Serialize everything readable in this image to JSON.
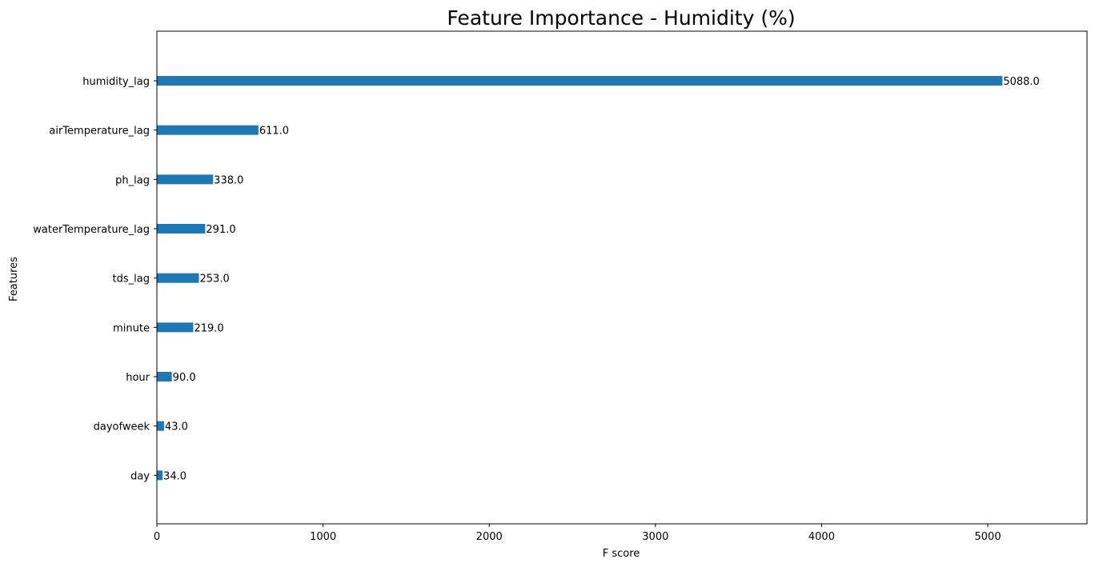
{
  "chart_data": {
    "type": "bar",
    "orientation": "horizontal",
    "title": "Feature Importance - Humidity (%)",
    "xlabel": "F score",
    "ylabel": "Features",
    "categories": [
      "humidity_lag",
      "airTemperature_lag",
      "ph_lag",
      "waterTemperature_lag",
      "tds_lag",
      "minute",
      "hour",
      "dayofweek",
      "day"
    ],
    "values": [
      5088.0,
      611.0,
      338.0,
      291.0,
      253.0,
      219.0,
      90.0,
      43.0,
      34.0
    ],
    "data_labels": [
      "5088.0",
      "611.0",
      "338.0",
      "291.0",
      "253.0",
      "219.0",
      "90.0",
      "43.0",
      "34.0"
    ],
    "xlim": [
      0,
      5597
    ],
    "xticks": [
      0,
      1000,
      2000,
      3000,
      4000,
      5000
    ],
    "bar_color": "#1f77b4",
    "grid": false,
    "legend": "none"
  }
}
